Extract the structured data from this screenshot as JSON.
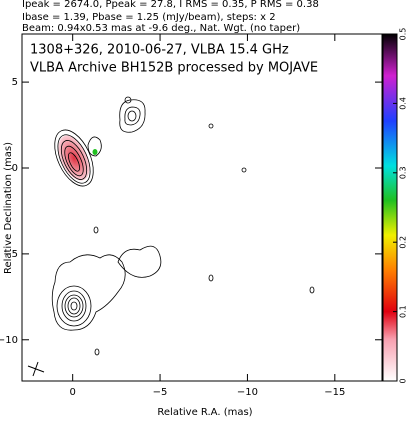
{
  "header": {
    "lines": [
      "Ipeak = 2674.0, Ppeak = 27.8, I RMS = 0.35, P RMS = 0.38",
      "Ibase = 1.39, Pbase = 1.25 (mJy/beam), steps: x 2",
      "Beam: 0.94x0.53 mas at -9.6 deg., Nat. Wgt. (no taper)"
    ]
  },
  "chart_data": {
    "type": "contour",
    "title": "1308+326, 2010-06-27, VLBA 15.4 GHz",
    "subtitle": "VLBA Archive BH152B processed by MOJAVE",
    "x_label": "Relative R.A. (mas)",
    "y_label": "Relative Declination (mas)",
    "xlim": [
      2.9,
      -17.7
    ],
    "ylim": [
      -12.4,
      7.8
    ],
    "xticks": [
      0,
      {
        "value": -5,
        "label": "−5"
      },
      {
        "value": -10,
        "label": "−10"
      },
      {
        "value": -15,
        "label": "−15"
      }
    ],
    "yticks": [
      5,
      0,
      {
        "value": -5,
        "label": "−5"
      },
      {
        "value": -10,
        "label": "−10"
      }
    ],
    "colorbar_lim": [
      0,
      0.5
    ],
    "colorbar_ticks": [
      0,
      0.1,
      0.2,
      0.3,
      0.4,
      0.5
    ]
  }
}
